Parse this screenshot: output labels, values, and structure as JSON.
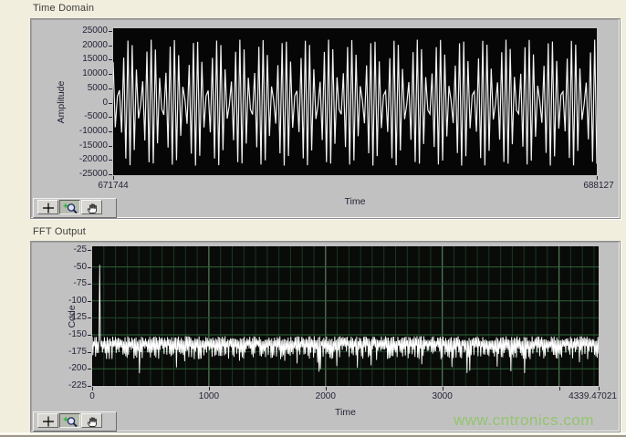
{
  "page": {
    "background": "#f1eede",
    "watermark": {
      "text": "www.cntronics.com",
      "color": "#90c46a"
    }
  },
  "time_domain": {
    "title": "Time Domain",
    "ylabel": "Amplitude",
    "xlabel": "Time",
    "y_ticks": [
      "25000",
      "20000",
      "15000",
      "10000",
      "5000",
      "0",
      "-5000",
      "-10000",
      "-15000",
      "-20000",
      "-25000"
    ],
    "x_min_label": "671744",
    "x_max_label": "688127",
    "toolbar": {
      "cursor_tool": "cursor",
      "zoom_tool": "zoom",
      "pan_tool": "pan",
      "active_tool": "zoom"
    }
  },
  "fft": {
    "title": "FFT Output",
    "ylabel": "Code",
    "xlabel": "Time",
    "y_ticks": [
      "-25",
      "-50",
      "-75",
      "-100",
      "-125",
      "-150",
      "-175",
      "-200",
      "-225"
    ],
    "x_ticks": [
      {
        "value": 0,
        "label": "0"
      },
      {
        "value": 1000,
        "label": "1000"
      },
      {
        "value": 2000,
        "label": "2000"
      },
      {
        "value": 3000,
        "label": "3000"
      },
      {
        "value": 4000,
        "label": ""
      },
      {
        "value": 4339.47021,
        "label": "4339.47021"
      }
    ],
    "toolbar": {
      "cursor_tool": "cursor",
      "zoom_tool": "zoom",
      "pan_tool": "pan",
      "active_tool": "zoom"
    }
  },
  "chart_data": [
    {
      "type": "line",
      "id": "time_domain",
      "title": "Time Domain",
      "xlabel": "Time",
      "ylabel": "Amplitude",
      "xlim": [
        671744,
        688127
      ],
      "ylim": [
        -25000,
        25000
      ],
      "y_tick_step": 5000,
      "grid": false,
      "plot_bg": "#060606",
      "series": [
        {
          "name": "waveform",
          "kind": "aliased_sine_beat",
          "amplitude": 22000,
          "n_samples": 230,
          "omega_rad": 2.8425,
          "phase": 0.7,
          "beat_lobes": 22,
          "color": "#ffffff"
        }
      ]
    },
    {
      "type": "line",
      "id": "fft",
      "title": "FFT Output",
      "xlabel": "Time",
      "ylabel": "Code",
      "xlim": [
        0,
        4339.47021
      ],
      "ylim": [
        -225,
        -25
      ],
      "y_tick_step": 25,
      "x_tick_step": 1000,
      "plot_bg": "#090b09",
      "grid": {
        "minor_x_step": 100,
        "major_x_step": 1000,
        "h_step": 25,
        "minor_x_color": "#1b3721",
        "major_x_color": "#577f5c",
        "h_bright_color": "#2f6339",
        "h_dim_color": "#1e4628"
      },
      "series": [
        {
          "name": "spectrum",
          "kind": "noise_floor",
          "noise_top": -152,
          "noise_mean": -172,
          "noise_spread": 20,
          "deep_spike_chance": 0.1,
          "deep_spike_extra": 26,
          "n_points": 740,
          "seed": 1234,
          "color": "#ffffff",
          "signal_spike": {
            "x": 62,
            "peak": -47
          }
        }
      ]
    }
  ]
}
